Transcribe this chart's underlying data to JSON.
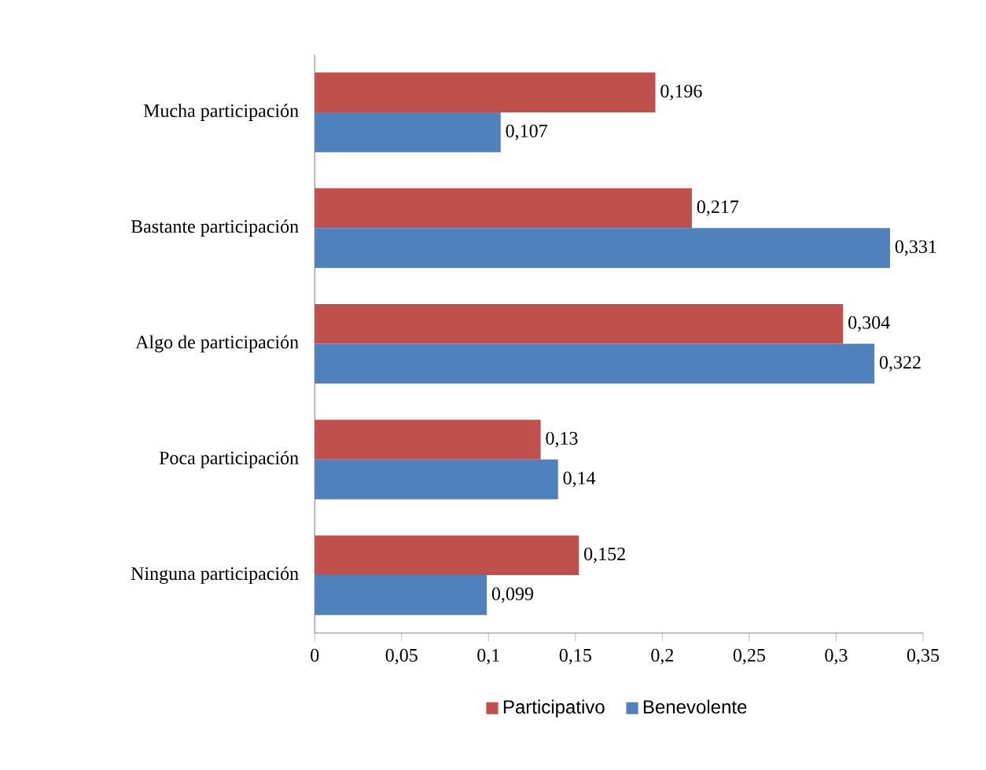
{
  "chart_data": {
    "type": "bar",
    "orientation": "horizontal",
    "categories": [
      "Mucha participación",
      "Bastante participación",
      "Algo de participación",
      "Poca participación",
      "Ninguna participación"
    ],
    "series": [
      {
        "name": "Participativo",
        "color": "#c0504d",
        "values": [
          0.196,
          0.217,
          0.304,
          0.13,
          0.152
        ],
        "value_labels": [
          "0,196",
          "0,217",
          "0,304",
          "0,13",
          "0,152"
        ]
      },
      {
        "name": "Benevolente",
        "color": "#4f81bd",
        "values": [
          0.107,
          0.331,
          0.322,
          0.14,
          0.099
        ],
        "value_labels": [
          "0,107",
          "0,331",
          "0,322",
          "0,14",
          "0,099"
        ]
      }
    ],
    "xlim": [
      0,
      0.35
    ],
    "xticks": [
      0,
      {
        "value": 0.05,
        "label": "0,05"
      },
      {
        "value": 0.1,
        "label": "0,1"
      },
      {
        "value": 0.15,
        "label": "0,15"
      },
      {
        "value": 0.2,
        "label": "0,2"
      },
      {
        "value": 0.25,
        "label": "0,25"
      },
      {
        "value": 0.3,
        "label": "0,3"
      },
      {
        "value": 0.35,
        "label": "0,35"
      }
    ],
    "grid": false,
    "legend": "bottom"
  }
}
